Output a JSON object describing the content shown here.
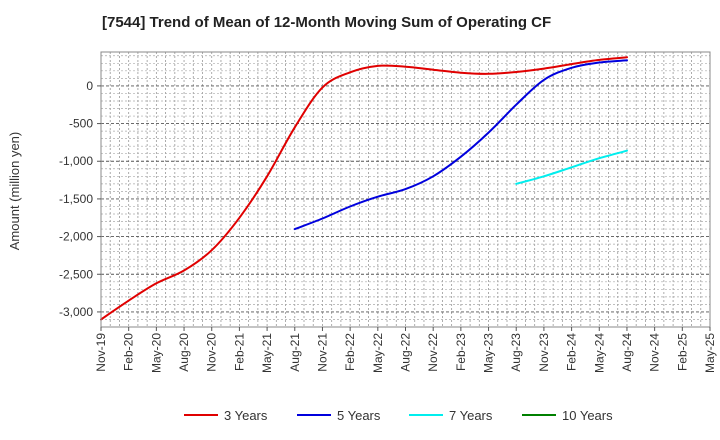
{
  "chart_data": {
    "type": "line",
    "title": "[7544]  Trend of Mean of 12-Month Moving Sum of Operating CF",
    "ylabel": "Amount (million yen)",
    "xlabel": "",
    "ylim": [
      -3200,
      450
    ],
    "grid": true,
    "legend_position": "bottom",
    "x_ticks": [
      "Nov-19",
      "Feb-20",
      "May-20",
      "Aug-20",
      "Nov-20",
      "Feb-21",
      "May-21",
      "Aug-21",
      "Nov-21",
      "Feb-22",
      "May-22",
      "Aug-22",
      "Nov-22",
      "Feb-23",
      "May-23",
      "Aug-23",
      "Nov-23",
      "Feb-24",
      "May-24",
      "Aug-24",
      "Nov-24",
      "Feb-25",
      "May-25"
    ],
    "y_ticks": [
      0,
      -500,
      -1000,
      -1500,
      -2000,
      -2500,
      -3000
    ],
    "y_tick_labels": [
      "0",
      "-500",
      "-1,000",
      "-1,500",
      "-2,000",
      "-2,500",
      "-3,000"
    ],
    "series": [
      {
        "name": "3 Years",
        "color": "#e00000",
        "points": [
          [
            "Nov-19",
            -3100
          ],
          [
            "Feb-20",
            -2850
          ],
          [
            "May-20",
            -2620
          ],
          [
            "Aug-20",
            -2450
          ],
          [
            "Nov-20",
            -2180
          ],
          [
            "Feb-21",
            -1750
          ],
          [
            "May-21",
            -1200
          ],
          [
            "Aug-21",
            -550
          ],
          [
            "Nov-21",
            -20
          ],
          [
            "Feb-22",
            180
          ],
          [
            "May-22",
            265
          ],
          [
            "Aug-22",
            255
          ],
          [
            "Nov-22",
            215
          ],
          [
            "Feb-23",
            175
          ],
          [
            "May-23",
            160
          ],
          [
            "Aug-23",
            185
          ],
          [
            "Nov-23",
            230
          ],
          [
            "Feb-24",
            290
          ],
          [
            "May-24",
            345
          ],
          [
            "Aug-24",
            380
          ]
        ]
      },
      {
        "name": "5 Years",
        "color": "#0000dd",
        "points": [
          [
            "Aug-21",
            -1900
          ],
          [
            "Nov-21",
            -1760
          ],
          [
            "Feb-22",
            -1600
          ],
          [
            "May-22",
            -1470
          ],
          [
            "Aug-22",
            -1370
          ],
          [
            "Nov-22",
            -1200
          ],
          [
            "Feb-23",
            -940
          ],
          [
            "May-23",
            -620
          ],
          [
            "Aug-23",
            -250
          ],
          [
            "Nov-23",
            80
          ],
          [
            "Feb-24",
            240
          ],
          [
            "May-24",
            310
          ],
          [
            "Aug-24",
            340
          ]
        ]
      },
      {
        "name": "7 Years",
        "color": "#00eeee",
        "points": [
          [
            "Aug-23",
            -1300
          ],
          [
            "Nov-23",
            -1200
          ],
          [
            "Feb-24",
            -1080
          ],
          [
            "May-24",
            -960
          ],
          [
            "Aug-24",
            -860
          ]
        ]
      },
      {
        "name": "10 Years",
        "color": "#008000",
        "points": []
      }
    ]
  }
}
